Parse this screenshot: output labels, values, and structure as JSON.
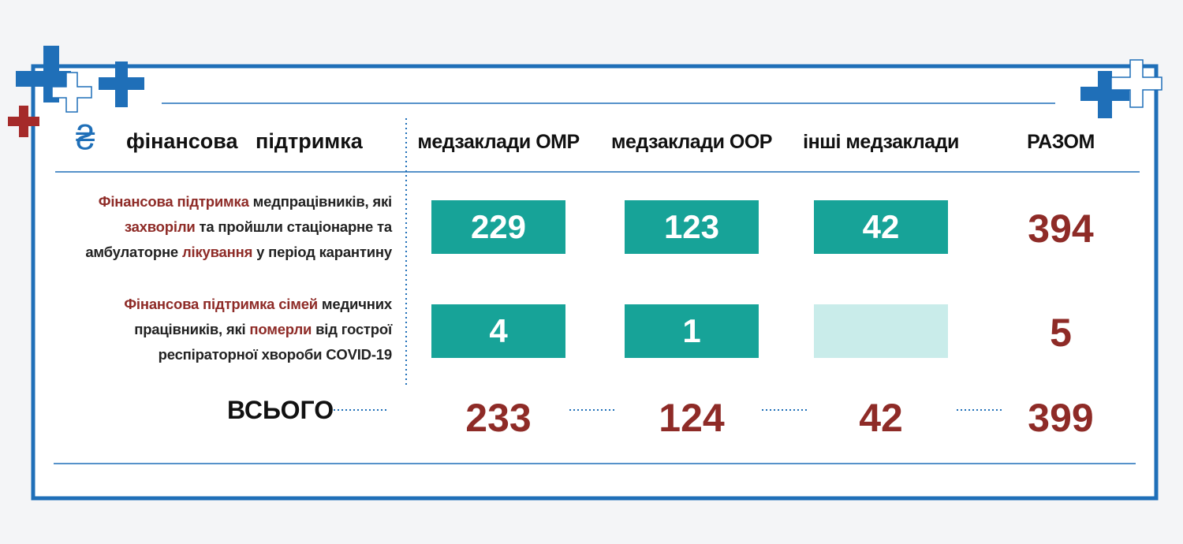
{
  "header": {
    "icon": "₴",
    "title": "фінансова   підтримка",
    "columns": [
      "медзаклади ОМР",
      "медзаклади ООР",
      "інші медзаклади",
      "РАЗОМ"
    ]
  },
  "rows": [
    {
      "label": [
        [
          {
            "text": "Фінансова підтримка",
            "highlight": true
          },
          {
            "text": " медпрацівників, які",
            "highlight": false
          }
        ],
        [
          {
            "text": "захворіли",
            "highlight": true
          },
          {
            "text": " та пройшли стаціонарне та",
            "highlight": false
          }
        ],
        [
          {
            "text": "амбулаторне ",
            "highlight": false
          },
          {
            "text": "лікування",
            "highlight": true
          },
          {
            "text": " у період карантину",
            "highlight": false
          }
        ]
      ],
      "values": [
        229,
        123,
        42
      ],
      "total": 394
    },
    {
      "label": [
        [
          {
            "text": "Фінансова підтримка сімей",
            "highlight": true
          },
          {
            "text": " медичних",
            "highlight": false
          }
        ],
        [
          {
            "text": "працівників, які ",
            "highlight": false
          },
          {
            "text": "померли",
            "highlight": true
          },
          {
            "text": " від гострої",
            "highlight": false
          }
        ],
        [
          {
            "text": "респіраторної хвороби COVID-19",
            "highlight": false
          }
        ]
      ],
      "values": [
        4,
        1,
        null
      ],
      "total": 5
    }
  ],
  "summary": {
    "label": "ВСЬОГО",
    "values": [
      233,
      124,
      42
    ],
    "total": 399
  }
}
